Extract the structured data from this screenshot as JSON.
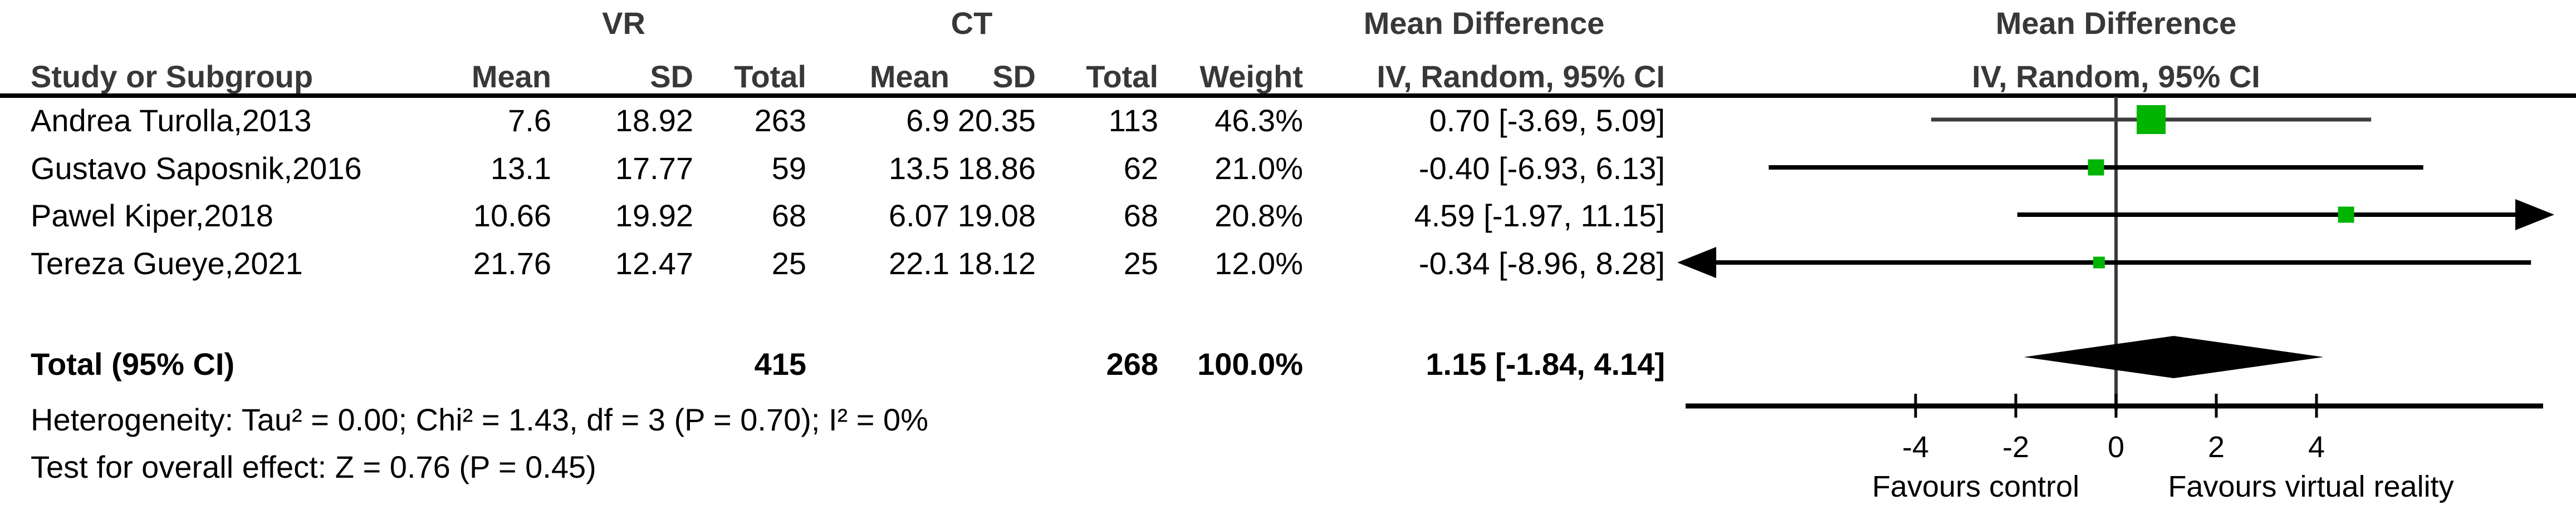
{
  "header": {
    "group_vr": "VR",
    "group_ct": "CT",
    "md_table": "Mean Difference",
    "md_plot": "Mean Difference",
    "col_study": "Study or Subgroup",
    "col_mean": "Mean",
    "col_sd": "SD",
    "col_total": "Total",
    "col_weight": "Weight",
    "col_iv_table": "IV, Random, 95% CI",
    "col_iv_plot": "IV, Random, 95% CI"
  },
  "colors": {
    "square_green": "#00b400",
    "ci_line_black": "#000000",
    "ci_line_first_row": "#3e3e3e",
    "zero_line_gray": "#3a3a3a",
    "diamond_black": "#000000"
  },
  "chart_data": {
    "type": "forest",
    "effect_measure": "Mean Difference, IV, Random, 95% CI",
    "studies": [
      {
        "name": "Andrea Turolla,2013",
        "vr_mean": "7.6",
        "vr_sd": "18.92",
        "vr_total": "263",
        "ct_mean": "6.9",
        "ct_sd": "20.35",
        "ct_total": "113",
        "weight": "46.3%",
        "md": 0.7,
        "ci_low": -3.69,
        "ci_high": 5.09,
        "ci_text": "0.70 [-3.69, 5.09]"
      },
      {
        "name": "Gustavo Saposnik,2016",
        "vr_mean": "13.1",
        "vr_sd": "17.77",
        "vr_total": "59",
        "ct_mean": "13.5",
        "ct_sd": "18.86",
        "ct_total": "62",
        "weight": "21.0%",
        "md": -0.4,
        "ci_low": -6.93,
        "ci_high": 6.13,
        "ci_text": "-0.40 [-6.93, 6.13]"
      },
      {
        "name": "Pawel Kiper,2018",
        "vr_mean": "10.66",
        "vr_sd": "19.92",
        "vr_total": "68",
        "ct_mean": "6.07",
        "ct_sd": "19.08",
        "ct_total": "68",
        "weight": "20.8%",
        "md": 4.59,
        "ci_low": -1.97,
        "ci_high": 11.15,
        "ci_text": "4.59 [-1.97, 11.15]"
      },
      {
        "name": "Tereza Gueye,2021",
        "vr_mean": "21.76",
        "vr_sd": "12.47",
        "vr_total": "25",
        "ct_mean": "22.1",
        "ct_sd": "18.12",
        "ct_total": "25",
        "weight": "12.0%",
        "md": -0.34,
        "ci_low": -8.96,
        "ci_high": 8.28,
        "ci_text": "-0.34 [-8.96, 8.28]"
      }
    ],
    "total": {
      "label": "Total (95% CI)",
      "vr_total": "415",
      "ct_total": "268",
      "weight": "100.0%",
      "md": 1.15,
      "ci_low": -1.84,
      "ci_high": 4.14,
      "ci_text": "1.15 [-1.84, 4.14]"
    },
    "heterogeneity": "Heterogeneity: Tau² = 0.00; Chi² = 1.43, df = 3 (P = 0.70); I² = 0%",
    "overall_effect": "Test for overall effect: Z = 0.76 (P = 0.45)",
    "axis": {
      "ticks": [
        -4,
        -2,
        0,
        2,
        4
      ],
      "xlim": [
        -8.6,
        8.5
      ],
      "favours_left": "Favours control",
      "favours_right": "Favours virtual reality"
    }
  }
}
